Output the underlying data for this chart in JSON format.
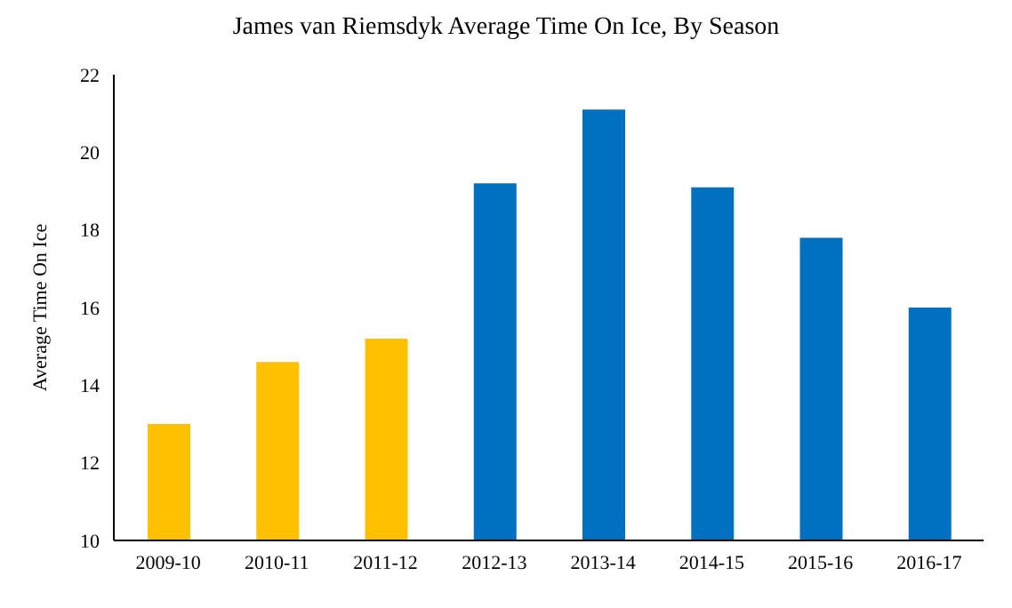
{
  "chart_data": {
    "type": "bar",
    "title": "James van Riemsdyk Average Time On Ice, By Season",
    "ylabel": "Average Time On Ice",
    "categories": [
      "2009-10",
      "2010-11",
      "2011-12",
      "2012-13",
      "2013-14",
      "2014-15",
      "2015-16",
      "2016-17"
    ],
    "values": [
      13.0,
      14.6,
      15.2,
      19.2,
      21.1,
      19.1,
      17.8,
      16.0
    ],
    "colors": [
      "#ffc000",
      "#ffc000",
      "#ffc000",
      "#0070c0",
      "#0070c0",
      "#0070c0",
      "#0070c0",
      "#0070c0"
    ],
    "ylim": [
      10,
      22
    ],
    "yticks": [
      10,
      12,
      14,
      16,
      18,
      20,
      22
    ],
    "grid": false,
    "legend": false
  }
}
